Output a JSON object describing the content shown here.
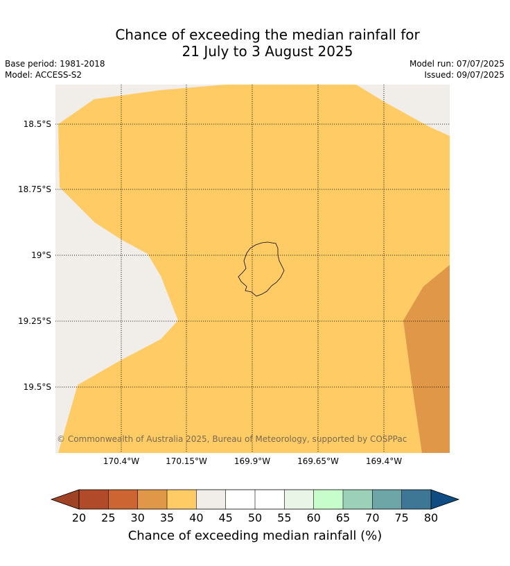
{
  "title": {
    "line1": "Chance of exceeding the median rainfall for",
    "line2": "21 July to 3 August 2025"
  },
  "meta": {
    "base_period": "Base period: 1981-2018",
    "model": "Model: ACCESS-S2",
    "model_run": "Model run: 07/07/2025",
    "issued": "Issued: 09/07/2025"
  },
  "map": {
    "lon_labels": [
      "170.4°W",
      "170.15°W",
      "169.9°W",
      "169.65°W",
      "169.4°W"
    ],
    "lat_labels": [
      "18.5°S",
      "18.75°S",
      "19°S",
      "19.25°S",
      "19.5°S"
    ],
    "copyright": "© Commonwealth of Australia 2025, Bureau of Meteorology, supported by COSPPac",
    "region_colors": {
      "35-40": "#fecb65",
      "30-35": "#e09748",
      "40-45": "#f1ede8"
    }
  },
  "colorbar": {
    "title": "Chance of exceeding median rainfall (%)",
    "tick_labels": [
      "20",
      "25",
      "30",
      "35",
      "40",
      "45",
      "50",
      "55",
      "60",
      "65",
      "70",
      "75",
      "80"
    ],
    "under_color": "#a04226",
    "over_color": "#0f4c84",
    "colors": [
      "#b04a28",
      "#cd6532",
      "#e09748",
      "#fecb65",
      "#f1ede8",
      "#ffffff",
      "#ffffff",
      "#e8f5e7",
      "#c7fdca",
      "#9dd0b8",
      "#6ea6a8",
      "#3e7696"
    ]
  }
}
